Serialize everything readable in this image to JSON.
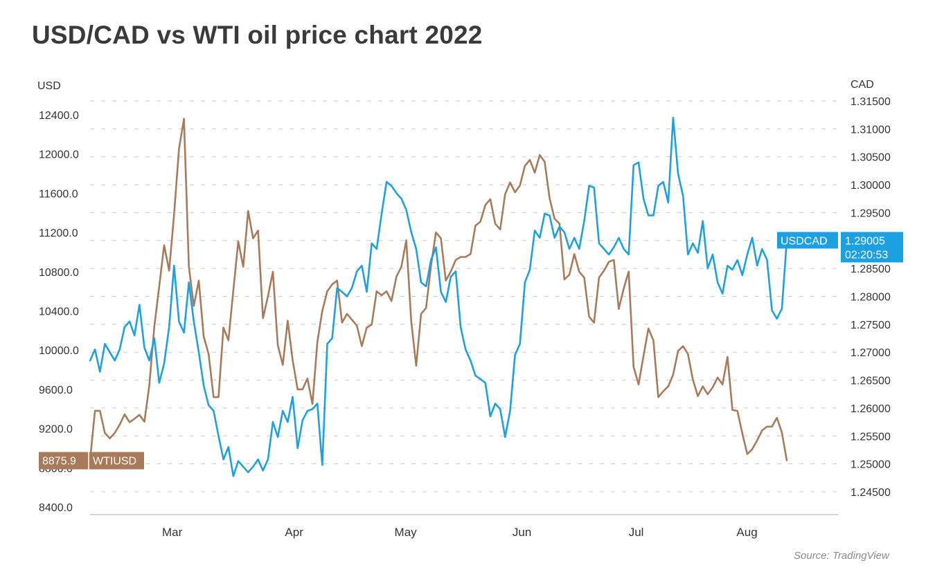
{
  "title": "USD/CAD vs WTI oil price chart 2022",
  "left_unit": "USD",
  "right_unit": "CAD",
  "source": "Source: TradingView",
  "colors": {
    "wti": "#a87a5a",
    "usdcad": "#1ba1e2",
    "grid": "#c8c8c8",
    "axis": "#bdbdbd"
  },
  "chart_data": {
    "type": "line",
    "x_labels": [
      "Mar",
      "Apr",
      "May",
      "Jun",
      "Jul",
      "Aug"
    ],
    "left_axis": {
      "label": "USD",
      "ticks": [
        "12400.0",
        "12000.0",
        "11600.0",
        "11200.0",
        "10800.0",
        "10400.0",
        "10000.0",
        "9600.0",
        "9200.0",
        "8800.0",
        "8400.0"
      ],
      "ylim": [
        8400,
        12400
      ]
    },
    "right_axis": {
      "label": "CAD",
      "ticks": [
        "1.31500",
        "1.31000",
        "1.30500",
        "1.30000",
        "1.29500",
        "1.29000",
        "1.28500",
        "1.28000",
        "1.27500",
        "1.27000",
        "1.26500",
        "1.26000",
        "1.25500",
        "1.25000",
        "1.24500"
      ],
      "ylim": [
        1.245,
        1.315
      ]
    },
    "series": [
      {
        "name": "WTIUSD",
        "axis": "left",
        "last_label": "8875.9",
        "tag_text": "WTIUSD",
        "values": [
          8875.9,
          9381,
          9381,
          9155,
          9100,
          9155,
          9240,
          9345,
          9265,
          9300,
          9340,
          9270,
          9640,
          10240,
          10650,
          11070,
          10810,
          11380,
          12050,
          12360,
          10850,
          10450,
          10710,
          10140,
          9960,
          9520,
          9520,
          10230,
          10100,
          10610,
          11110,
          10850,
          11420,
          11140,
          11220,
          10325,
          10550,
          10800,
          10050,
          9850,
          10300,
          9900,
          9600,
          9600,
          9710,
          9450,
          10080,
          10400,
          10600,
          10670,
          10710,
          10280,
          10370,
          10310,
          10250,
          10040,
          10230,
          10260,
          10600,
          10560,
          10600,
          10500,
          10750,
          10850,
          11120,
          10290,
          9840,
          10370,
          10430,
          10860,
          11200,
          11140,
          10710,
          10800,
          10920,
          10950,
          10950,
          10980,
          11270,
          11310,
          11480,
          11540,
          11290,
          11230,
          11590,
          11710,
          11610,
          11680,
          11880,
          11940,
          11810,
          11990,
          11920,
          11550,
          11340,
          11290,
          10720,
          10770,
          10980,
          10800,
          10740,
          10340,
          10280,
          10740,
          10810,
          10900,
          10920,
          10420,
          10630,
          10800,
          9830,
          9650,
          9940,
          10220,
          10100,
          9520,
          9580,
          9630,
          9750,
          9990,
          10040,
          9960,
          9700,
          9530,
          9630,
          9550,
          9620,
          9720,
          9650,
          9930,
          9390,
          9380,
          9150,
          8940,
          8990,
          9080,
          9180,
          9220,
          9220,
          9310,
          9160,
          8875.9
        ]
      },
      {
        "name": "USDCAD",
        "axis": "right",
        "last_label": "1.29005",
        "tag_text": "USDCAD",
        "time_label": "02:20:53",
        "values": [
          1.2685,
          1.2705,
          1.2665,
          1.2715,
          1.27,
          1.2685,
          1.2705,
          1.2745,
          1.2755,
          1.273,
          1.2785,
          1.2708,
          1.2685,
          1.2725,
          1.2645,
          1.268,
          1.2745,
          1.2855,
          1.2755,
          1.2735,
          1.2825,
          1.2755,
          1.27,
          1.264,
          1.2605,
          1.2595,
          1.255,
          1.2508,
          1.253,
          1.2478,
          1.2505,
          1.2495,
          1.2485,
          1.2495,
          1.2508,
          1.2488,
          1.2508,
          1.2575,
          1.2548,
          1.2595,
          1.2575,
          1.262,
          1.2528,
          1.2578,
          1.2595,
          1.2598,
          1.2608,
          1.2498,
          1.2715,
          1.2725,
          1.2815,
          1.2808,
          1.28,
          1.2815,
          1.2845,
          1.2855,
          1.2808,
          1.2895,
          1.2885,
          1.2948,
          1.3005,
          1.2998,
          1.2985,
          1.2975,
          1.2955,
          1.2915,
          1.2885,
          1.2825,
          1.2818,
          1.2865,
          1.2888,
          1.2808,
          1.279,
          1.2835,
          1.2845,
          1.2745,
          1.2705,
          1.2685,
          1.2658,
          1.2652,
          1.2645,
          1.2585,
          1.2608,
          1.2598,
          1.2548,
          1.2595,
          1.2695,
          1.2715,
          1.2825,
          1.2848,
          1.2918,
          1.2905,
          1.2948,
          1.2945,
          1.2905,
          1.2925,
          1.2915,
          1.2885,
          1.2905,
          1.2885,
          1.2935,
          1.2998,
          1.2995,
          1.2895,
          1.2885,
          1.2875,
          1.2888,
          1.2905,
          1.2885,
          1.2875,
          1.3035,
          1.304,
          1.2975,
          1.2945,
          1.2945,
          1.2998,
          1.3005,
          1.2968,
          1.312,
          1.302,
          1.298,
          1.2875,
          1.2895,
          1.2878,
          1.2935,
          1.285,
          1.2875,
          1.2825,
          1.2805,
          1.2855,
          1.2848,
          1.2865,
          1.2838,
          1.2875,
          1.2905,
          1.2855,
          1.2885,
          1.2865,
          1.2775,
          1.276,
          1.2778,
          1.29005
        ]
      }
    ]
  }
}
